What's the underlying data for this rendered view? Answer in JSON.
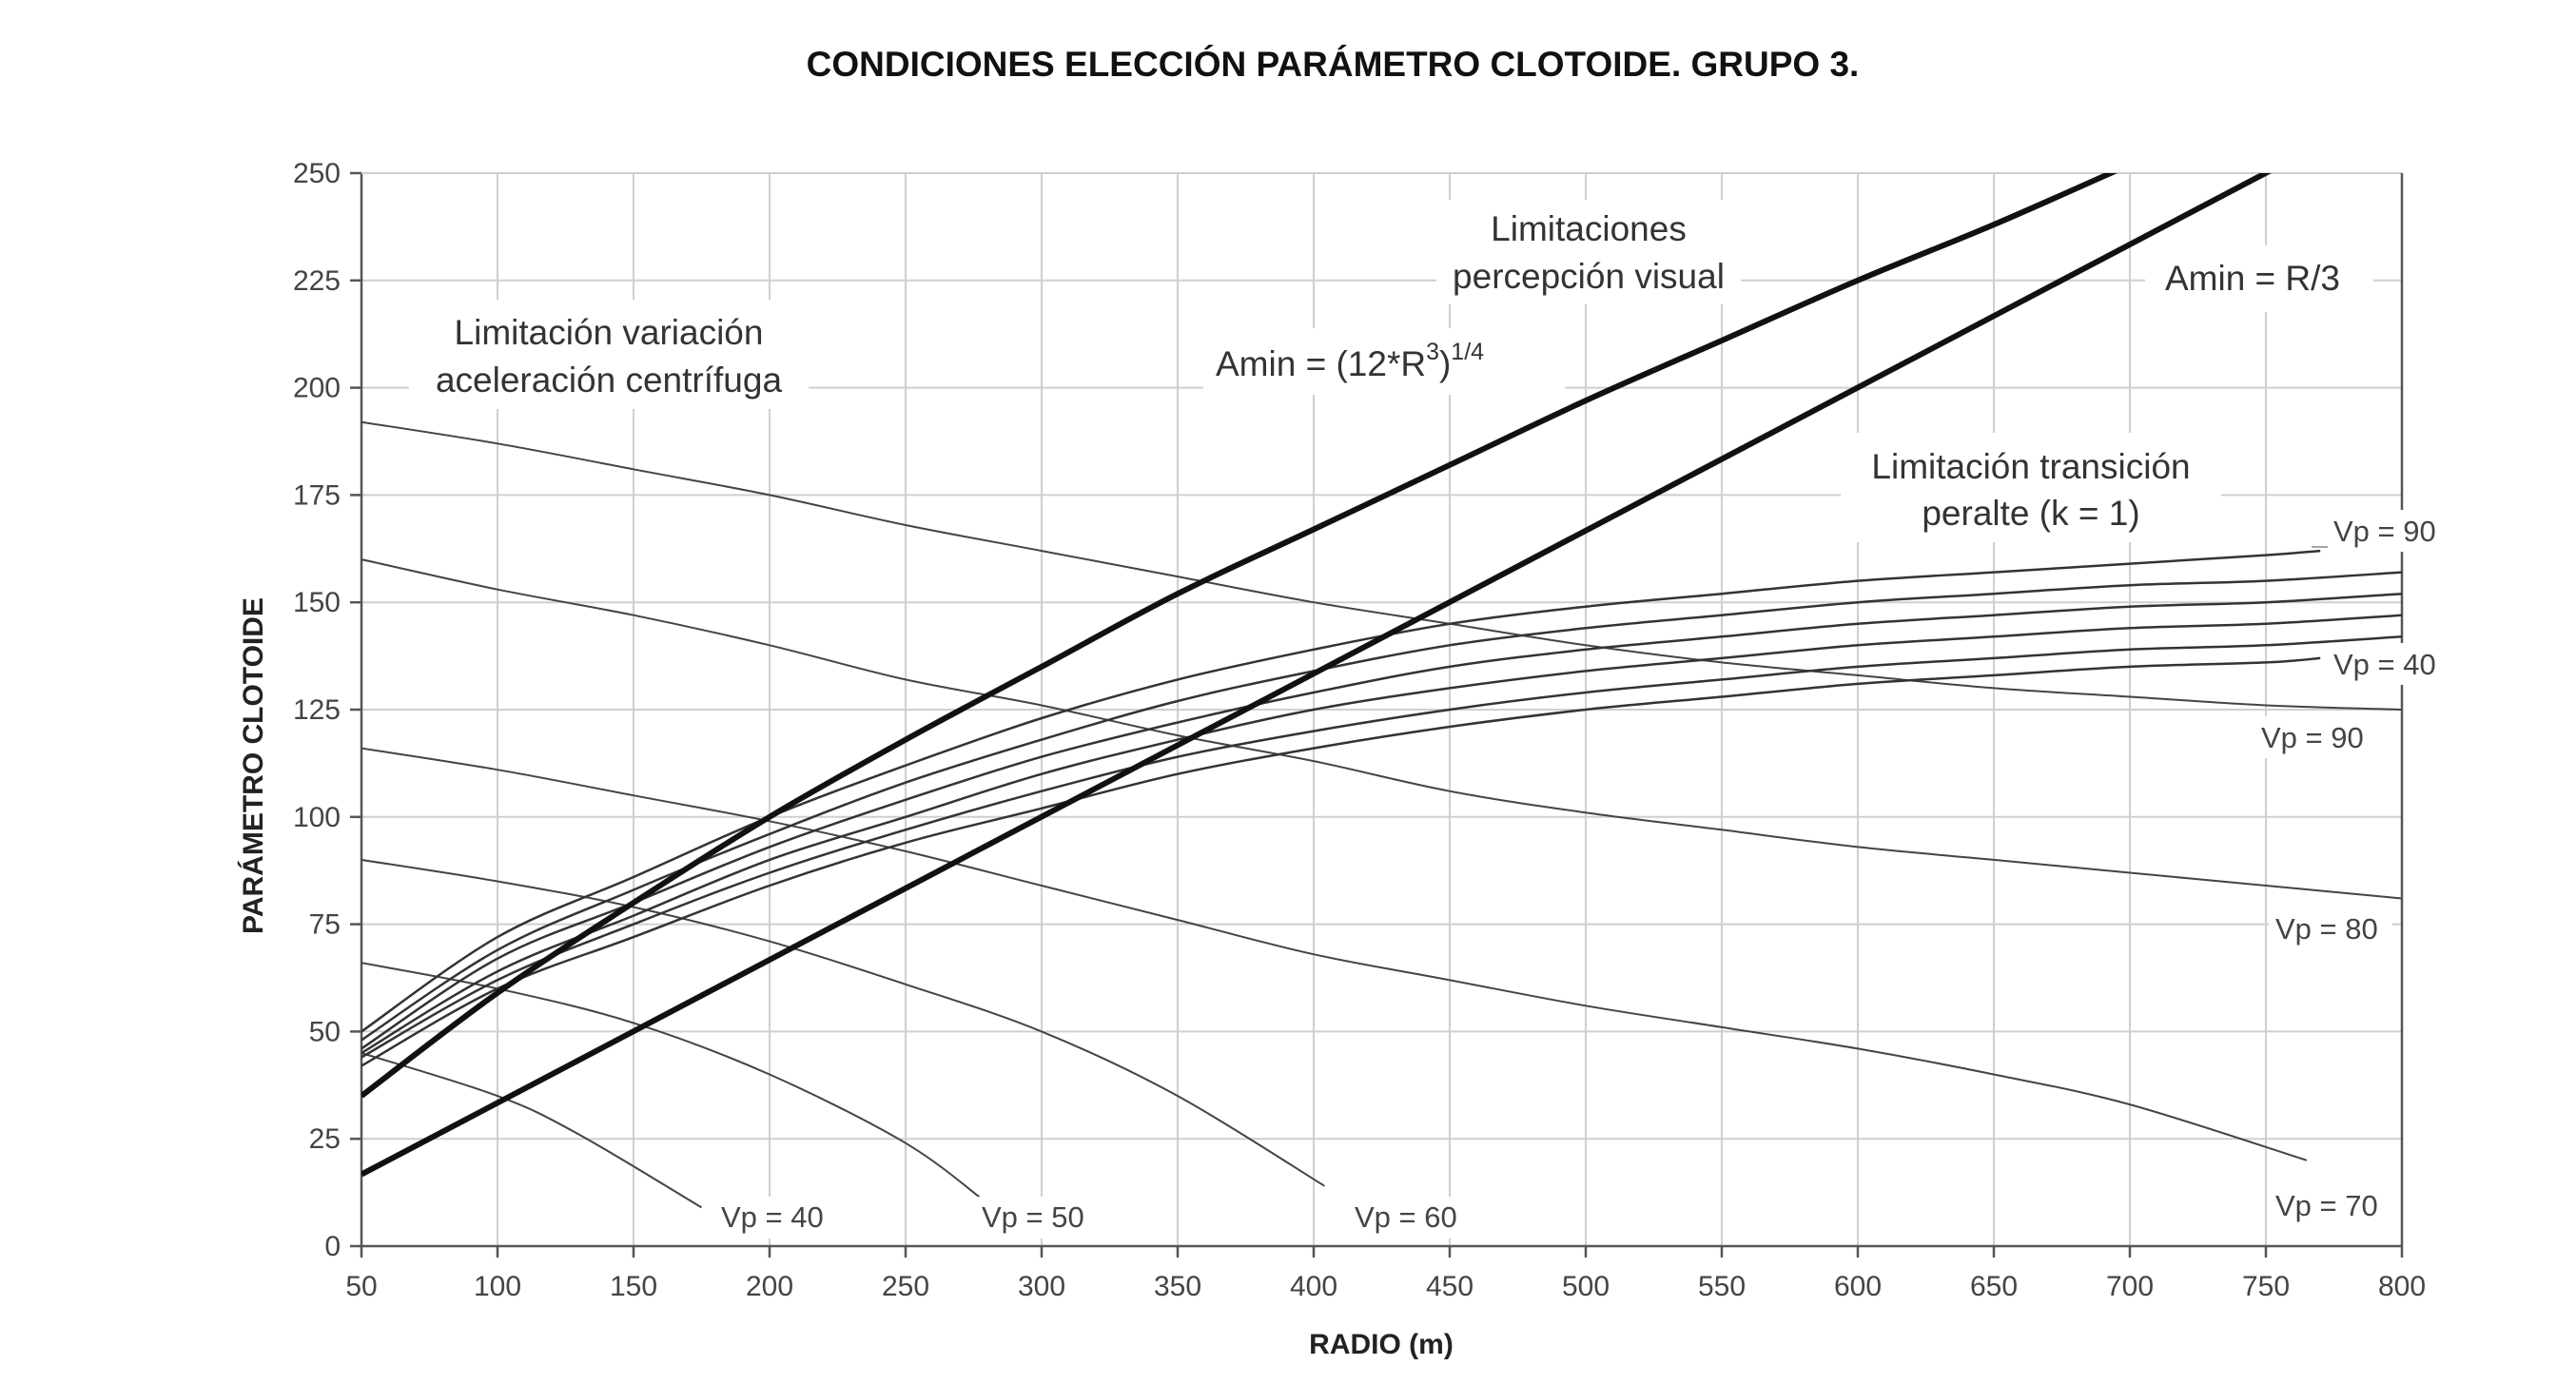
{
  "chart_data": {
    "type": "line",
    "title": "CONDICIONES ELECCIÓN PARÁMETRO CLOTOIDE. GRUPO 3.",
    "xlabel": "RADIO (m)",
    "ylabel": "PARÁMETRO CLOTOIDE",
    "xlim": [
      50,
      800
    ],
    "ylim": [
      0,
      250
    ],
    "x_ticks": [
      "50",
      "100",
      "150",
      "200",
      "250",
      "300",
      "350",
      "400",
      "450",
      "500",
      "550",
      "600",
      "650",
      "700",
      "750",
      "800"
    ],
    "y_ticks": [
      "0",
      "25",
      "50",
      "75",
      "100",
      "125",
      "150",
      "175",
      "200",
      "225",
      "250"
    ],
    "grid": true,
    "annotations": {
      "visual_1": "Limitaciones",
      "visual_2": "percepción visual",
      "formula_main": "Amin =  (12*R",
      "formula_sup3": "3",
      "formula_close": ")",
      "formula_sup_exp": "1/4",
      "r3": "Amin = R/3",
      "centrifugal_1": "Limitación variación",
      "centrifugal_2": "aceleración centrífuga",
      "peralte_1": "Limitación transición",
      "peralte_2": "peralte (k = 1)"
    },
    "visual_series": [
      {
        "name": "Amin = (12*R^3)^1/4",
        "x": [
          50,
          100,
          150,
          200,
          250,
          300,
          350,
          400,
          450,
          500,
          550,
          600,
          650,
          700
        ],
        "y": [
          35,
          59,
          80,
          100,
          118,
          135,
          152,
          167,
          182,
          197,
          211,
          225,
          238,
          252
        ]
      },
      {
        "name": "Amin = R/3",
        "x": [
          50,
          800
        ],
        "y": [
          16.7,
          266.7
        ]
      }
    ],
    "centrifugal_series": [
      {
        "name": "Vp = 90",
        "label": "Vp = 90",
        "x": [
          50,
          100,
          150,
          200,
          250,
          300,
          350,
          400,
          450,
          500,
          550,
          600,
          650,
          700,
          750,
          800
        ],
        "y": [
          192,
          187,
          181,
          175,
          168,
          162,
          156,
          150,
          145,
          140,
          136,
          133,
          130,
          128,
          126,
          125
        ]
      },
      {
        "name": "Vp = 80",
        "label": "Vp = 80",
        "x": [
          50,
          100,
          150,
          200,
          250,
          300,
          350,
          400,
          450,
          500,
          550,
          600,
          650,
          700,
          750,
          800
        ],
        "y": [
          160,
          153,
          147,
          140,
          132,
          126,
          119,
          113,
          106,
          101,
          97,
          93,
          90,
          87,
          84,
          81
        ]
      },
      {
        "name": "Vp = 70",
        "label": "Vp = 70",
        "x": [
          50,
          100,
          150,
          200,
          250,
          300,
          350,
          400,
          450,
          500,
          550,
          600,
          650,
          700,
          765
        ],
        "y": [
          116,
          111,
          105,
          99,
          92,
          84,
          76,
          68,
          62,
          56,
          51,
          46,
          40,
          33,
          20
        ]
      },
      {
        "name": "Vp = 60",
        "label": "Vp = 60",
        "x": [
          50,
          100,
          150,
          200,
          250,
          300,
          350,
          404
        ],
        "y": [
          90,
          85,
          79,
          71,
          61,
          50,
          35,
          14
        ]
      },
      {
        "name": "Vp = 50",
        "label": "Vp = 50",
        "x": [
          50,
          100,
          150,
          200,
          250,
          280
        ],
        "y": [
          66,
          60,
          52,
          40,
          24,
          10
        ]
      },
      {
        "name": "Vp = 40",
        "label": "Vp = 40",
        "x": [
          50,
          100,
          130,
          175
        ],
        "y": [
          45,
          35,
          26,
          9
        ]
      }
    ],
    "peralte_series": [
      {
        "name": "Vp = 90",
        "label": "Vp = 90",
        "x": [
          50,
          100,
          150,
          200,
          250,
          300,
          350,
          400,
          450,
          500,
          550,
          600,
          650,
          700,
          750,
          770
        ],
        "y": [
          50,
          72,
          86,
          100,
          112,
          123,
          132,
          139,
          145,
          149,
          152,
          155,
          157,
          159,
          161,
          162
        ]
      },
      {
        "name": "Vp = 80",
        "x": [
          50,
          100,
          150,
          200,
          250,
          300,
          350,
          400,
          450,
          500,
          550,
          600,
          650,
          700,
          750,
          800
        ],
        "y": [
          48,
          69,
          83,
          96,
          108,
          118,
          127,
          134,
          140,
          144,
          147,
          150,
          152,
          154,
          155,
          157
        ]
      },
      {
        "name": "Vp = 70",
        "x": [
          50,
          100,
          150,
          200,
          250,
          300,
          350,
          400,
          450,
          500,
          550,
          600,
          650,
          700,
          750,
          800
        ],
        "y": [
          46,
          67,
          80,
          93,
          104,
          114,
          122,
          129,
          135,
          139,
          142,
          145,
          147,
          149,
          150,
          152
        ]
      },
      {
        "name": "Vp = 60",
        "x": [
          50,
          100,
          150,
          200,
          250,
          300,
          350,
          400,
          450,
          500,
          550,
          600,
          650,
          700,
          750,
          800
        ],
        "y": [
          45,
          64,
          77,
          90,
          100,
          110,
          118,
          125,
          130,
          134,
          137,
          140,
          142,
          144,
          145,
          147
        ]
      },
      {
        "name": "Vp = 50",
        "x": [
          50,
          100,
          150,
          200,
          250,
          300,
          350,
          400,
          450,
          500,
          550,
          600,
          650,
          700,
          750,
          800
        ],
        "y": [
          44,
          62,
          75,
          87,
          97,
          106,
          114,
          120,
          125,
          129,
          132,
          135,
          137,
          139,
          140,
          142
        ]
      },
      {
        "name": "Vp = 40",
        "label": "Vp = 40",
        "x": [
          50,
          100,
          150,
          200,
          250,
          300,
          350,
          400,
          450,
          500,
          550,
          600,
          650,
          700,
          750,
          770
        ],
        "y": [
          42,
          60,
          72,
          84,
          94,
          102,
          110,
          116,
          121,
          125,
          128,
          131,
          133,
          135,
          136,
          137
        ]
      }
    ]
  }
}
